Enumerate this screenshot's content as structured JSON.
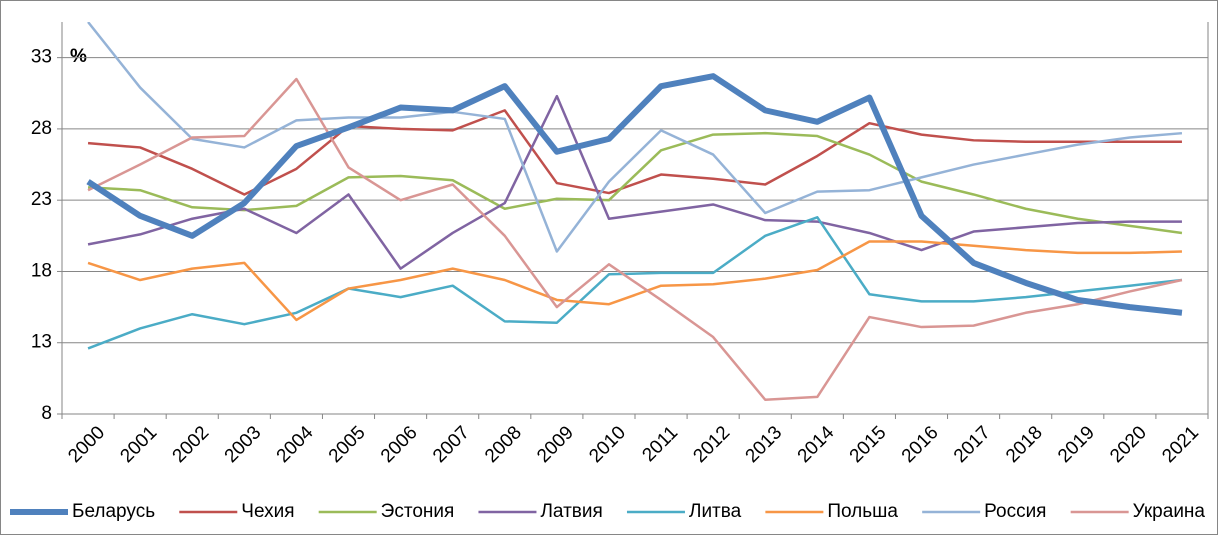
{
  "chart_data": {
    "type": "line",
    "y_label": "%",
    "categories": [
      "2000",
      "2001",
      "2002",
      "2003",
      "2004",
      "2005",
      "2006",
      "2007",
      "2008",
      "2009",
      "2010",
      "2011",
      "2012",
      "2013",
      "2014",
      "2015",
      "2016",
      "2017",
      "2018",
      "2019",
      "2020",
      "2021"
    ],
    "ylim": [
      8,
      35.5
    ],
    "yticks": [
      8,
      13,
      18,
      23,
      28,
      33
    ],
    "grid": true,
    "legend": "bottom",
    "series": [
      {
        "name": "Беларусь",
        "color": "#4f81bd",
        "values": [
          24.3,
          21.9,
          20.5,
          22.8,
          26.8,
          28.1,
          29.5,
          29.3,
          31.0,
          26.4,
          27.3,
          31.0,
          31.7,
          29.3,
          28.5,
          30.2,
          21.9,
          18.6,
          17.2,
          16.0,
          15.5,
          15.1
        ]
      },
      {
        "name": "Чехия",
        "color": "#c0504d",
        "values": [
          27.0,
          26.7,
          25.2,
          23.4,
          25.2,
          28.2,
          28.0,
          27.9,
          29.3,
          24.2,
          23.5,
          24.8,
          24.5,
          24.1,
          26.1,
          28.4,
          27.6,
          27.2,
          27.1,
          27.1,
          27.1,
          27.1
        ]
      },
      {
        "name": "Эстония",
        "color": "#9bbb59",
        "values": [
          23.9,
          23.7,
          22.5,
          22.3,
          22.6,
          24.6,
          24.7,
          24.4,
          22.4,
          23.1,
          23.0,
          26.5,
          27.6,
          27.7,
          27.5,
          26.2,
          24.3,
          23.4,
          22.4,
          21.7,
          21.2,
          20.7
        ]
      },
      {
        "name": "Латвия",
        "color": "#8064a2",
        "values": [
          19.9,
          20.6,
          21.7,
          22.4,
          20.7,
          23.4,
          18.2,
          20.7,
          22.8,
          30.3,
          21.7,
          22.2,
          22.7,
          21.6,
          21.5,
          20.7,
          19.5,
          20.8,
          21.1,
          21.4,
          21.5,
          21.5
        ]
      },
      {
        "name": "Литва",
        "color": "#4bacc6",
        "values": [
          12.6,
          14.0,
          15.0,
          14.3,
          15.1,
          16.8,
          16.2,
          17.0,
          14.5,
          14.4,
          17.8,
          17.9,
          17.9,
          20.5,
          21.8,
          16.4,
          15.9,
          15.9,
          16.2,
          16.6,
          17.0,
          17.4
        ]
      },
      {
        "name": "Польша",
        "color": "#f79646",
        "values": [
          18.6,
          17.4,
          18.2,
          18.6,
          14.6,
          16.8,
          17.4,
          18.2,
          17.4,
          16.0,
          15.7,
          17.0,
          17.1,
          17.5,
          18.1,
          20.1,
          20.1,
          19.8,
          19.5,
          19.3,
          19.3,
          19.4
        ]
      },
      {
        "name": "Россия",
        "color": "#95b3d7",
        "values": [
          35.5,
          30.9,
          27.3,
          26.7,
          28.6,
          28.8,
          28.8,
          29.2,
          28.7,
          19.4,
          24.3,
          27.9,
          26.2,
          22.1,
          23.6,
          23.7,
          24.6,
          25.5,
          26.2,
          26.9,
          27.4,
          27.7
        ]
      },
      {
        "name": "Украина",
        "color": "#d99694",
        "values": [
          23.7,
          25.5,
          27.4,
          27.5,
          31.5,
          25.3,
          23.0,
          24.1,
          20.5,
          15.5,
          18.5,
          16.0,
          13.4,
          9.0,
          9.2,
          14.8,
          14.1,
          14.2,
          15.1,
          15.7,
          16.6,
          17.4
        ]
      }
    ]
  }
}
